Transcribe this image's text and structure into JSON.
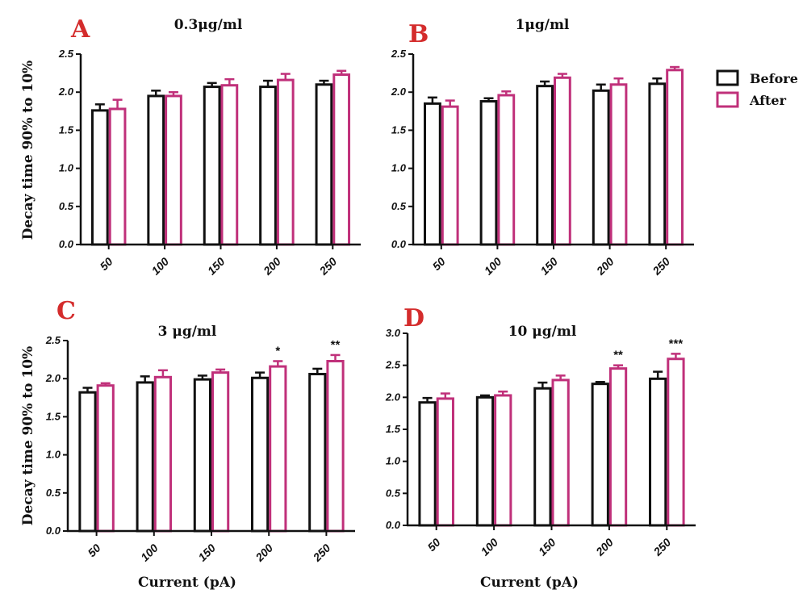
{
  "legend": [
    {
      "label": "Before",
      "color": "#111111"
    },
    {
      "label": "After",
      "color": "#c0307a"
    }
  ],
  "chart_data": [
    {
      "type": "bar",
      "panel": "A",
      "title": "0.3μg/ml",
      "ylabel": "Decay time 90% to 10%",
      "xlabel": "",
      "categories": [
        "50",
        "100",
        "150",
        "200",
        "250"
      ],
      "ylim": [
        0,
        2.5
      ],
      "yticks": [
        "0.0",
        "0.5",
        "1.0",
        "1.5",
        "2.0",
        "2.5"
      ],
      "series": [
        {
          "name": "Before",
          "values": [
            1.76,
            1.95,
            2.07,
            2.07,
            2.1
          ],
          "errors": [
            0.08,
            0.07,
            0.05,
            0.08,
            0.05
          ]
        },
        {
          "name": "After",
          "values": [
            1.78,
            1.95,
            2.09,
            2.16,
            2.23
          ],
          "errors": [
            0.12,
            0.05,
            0.08,
            0.08,
            0.05
          ]
        }
      ],
      "annotations": []
    },
    {
      "type": "bar",
      "panel": "B",
      "title": "1μg/ml",
      "ylabel": "",
      "xlabel": "",
      "categories": [
        "50",
        "100",
        "150",
        "200",
        "250"
      ],
      "ylim": [
        0,
        2.5
      ],
      "yticks": [
        "0.0",
        "0.5",
        "1.0",
        "1.5",
        "2.0",
        "2.5"
      ],
      "series": [
        {
          "name": "Before",
          "values": [
            1.85,
            1.88,
            2.08,
            2.02,
            2.11
          ],
          "errors": [
            0.08,
            0.04,
            0.06,
            0.08,
            0.07
          ]
        },
        {
          "name": "After",
          "values": [
            1.81,
            1.96,
            2.19,
            2.1,
            2.29
          ],
          "errors": [
            0.08,
            0.05,
            0.05,
            0.08,
            0.04
          ]
        }
      ],
      "annotations": []
    },
    {
      "type": "bar",
      "panel": "C",
      "title": "3 μg/ml",
      "ylabel": "Decay time 90% to 10%",
      "xlabel": "Current (pA)",
      "categories": [
        "50",
        "100",
        "150",
        "200",
        "250"
      ],
      "ylim": [
        0,
        2.5
      ],
      "yticks": [
        "0.0",
        "0.5",
        "1.0",
        "1.5",
        "2.0",
        "2.5"
      ],
      "series": [
        {
          "name": "Before",
          "values": [
            1.82,
            1.95,
            1.99,
            2.01,
            2.06
          ],
          "errors": [
            0.06,
            0.08,
            0.05,
            0.07,
            0.07
          ]
        },
        {
          "name": "After",
          "values": [
            1.91,
            2.02,
            2.08,
            2.16,
            2.23
          ],
          "errors": [
            0.03,
            0.09,
            0.04,
            0.07,
            0.08
          ]
        }
      ],
      "annotations": [
        {
          "category": "200",
          "series": "After",
          "text": "*"
        },
        {
          "category": "250",
          "series": "After",
          "text": "**"
        }
      ]
    },
    {
      "type": "bar",
      "panel": "D",
      "title": "10 μg/ml",
      "ylabel": "",
      "xlabel": "Current (pA)",
      "categories": [
        "50",
        "100",
        "150",
        "200",
        "250"
      ],
      "ylim": [
        0,
        3.0
      ],
      "yticks": [
        "0.0",
        "0.5",
        "1.0",
        "1.5",
        "2.0",
        "2.5",
        "3.0"
      ],
      "series": [
        {
          "name": "Before",
          "values": [
            1.92,
            2.0,
            2.14,
            2.21,
            2.29
          ],
          "errors": [
            0.07,
            0.03,
            0.09,
            0.03,
            0.11
          ]
        },
        {
          "name": "After",
          "values": [
            1.98,
            2.03,
            2.27,
            2.45,
            2.6
          ],
          "errors": [
            0.08,
            0.06,
            0.07,
            0.05,
            0.08
          ]
        }
      ],
      "annotations": [
        {
          "category": "200",
          "series": "After",
          "text": "**"
        },
        {
          "category": "250",
          "series": "After",
          "text": "***"
        }
      ]
    }
  ]
}
